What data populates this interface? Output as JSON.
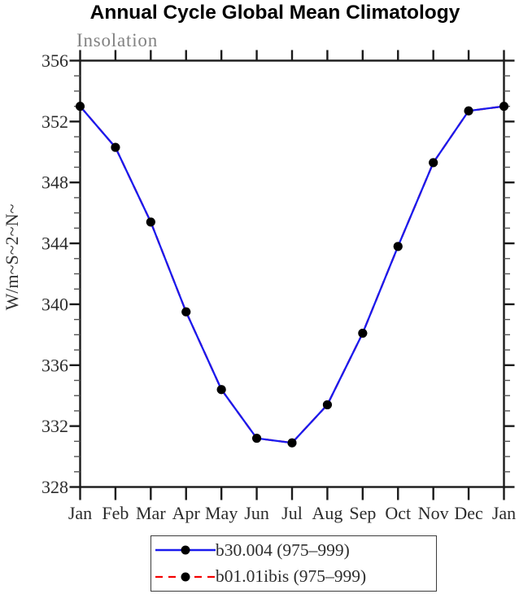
{
  "title": "Annual Cycle Global Mean Climatology",
  "chart_data": {
    "type": "line",
    "title": "Annual Cycle Global Mean Climatology",
    "subtitle": "Insolation",
    "ylabel": "W/m~S~2~N~",
    "xlabel": "",
    "categories": [
      "Jan",
      "Feb",
      "Mar",
      "Apr",
      "May",
      "Jun",
      "Jul",
      "Aug",
      "Sep",
      "Oct",
      "Nov",
      "Dec",
      "Jan"
    ],
    "ylim": [
      328,
      356
    ],
    "ytick_major_step": 4,
    "ytick_minor_step": 1,
    "grid": "off",
    "legend_position": "bottom",
    "series": [
      {
        "name": "b30.004 (975–999)",
        "color": "#1a1aee",
        "line_style": "solid",
        "marker": "filled-circle",
        "marker_color": "#000000",
        "values": [
          353.0,
          350.3,
          345.4,
          339.5,
          334.4,
          331.2,
          330.9,
          333.4,
          338.1,
          343.8,
          349.3,
          352.7,
          353.0
        ]
      },
      {
        "name": "b01.01ibis (975–999)",
        "color": "#f40000",
        "line_style": "dashed",
        "marker": "filled-circle",
        "marker_color": "#000000",
        "values": [
          353.0,
          350.3,
          345.4,
          339.5,
          334.4,
          331.2,
          330.9,
          333.4,
          338.1,
          343.8,
          349.3,
          352.7,
          353.0
        ]
      }
    ]
  },
  "colors": {
    "axis": "#1a1a1a",
    "minor_tick": "#555555",
    "tick_label": "#2b2b2b",
    "title": "#000000",
    "subtitle": "#828282",
    "background": "#ffffff"
  }
}
